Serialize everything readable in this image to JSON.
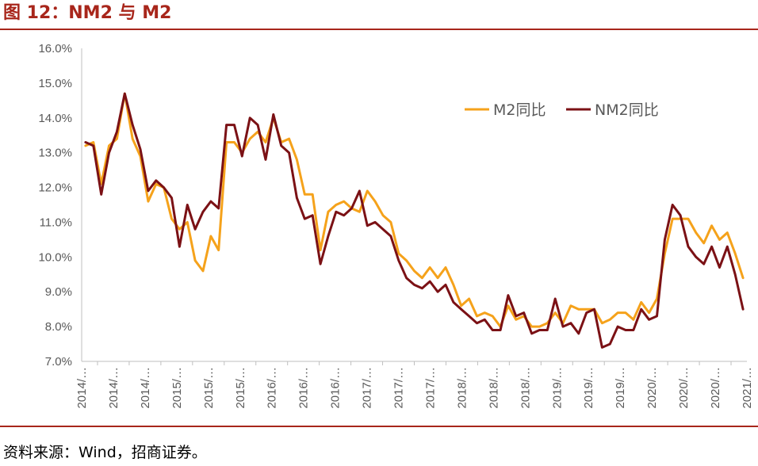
{
  "figure": {
    "title": "图 12：NM2 与 M2",
    "source": "资料来源：Wind，招商证券。"
  },
  "colors": {
    "m2": "#f5a21b",
    "nm2": "#7b1115",
    "accent": "#a8261b",
    "axis": "#bfbfbf",
    "tick_text": "#595959"
  },
  "chart_data": {
    "type": "line",
    "title": "",
    "xlabel": "",
    "ylabel": "",
    "ylim": [
      7.0,
      16.0
    ],
    "y_ticks": [
      "7.0%",
      "8.0%",
      "9.0%",
      "10.0%",
      "11.0%",
      "12.0%",
      "13.0%",
      "14.0%",
      "15.0%",
      "16.0%"
    ],
    "x_tick_labels": [
      "2014/…",
      "2014/…",
      "2014/…",
      "2015/…",
      "2015/…",
      "2015/…",
      "2016/…",
      "2016/…",
      "2016/…",
      "2017/…",
      "2017/…",
      "2017/…",
      "2018/…",
      "2018/…",
      "2018/…",
      "2019/…",
      "2019/…",
      "2019/…",
      "2020/…",
      "2020/…",
      "2020/…",
      "2021/…"
    ],
    "grid": false,
    "legend_position": "top-right",
    "series": [
      {
        "name": "M2同比",
        "values": [
          13.2,
          13.3,
          12.1,
          13.2,
          13.4,
          14.7,
          13.4,
          12.9,
          11.6,
          12.1,
          12.0,
          11.1,
          10.8,
          11.0,
          9.9,
          9.6,
          10.6,
          10.2,
          13.3,
          13.3,
          13.0,
          13.4,
          13.6,
          13.3,
          14.0,
          13.3,
          13.4,
          12.8,
          11.8,
          11.8,
          10.2,
          11.3,
          11.5,
          11.6,
          11.4,
          11.3,
          11.9,
          11.6,
          11.2,
          11.0,
          10.1,
          9.9,
          9.6,
          9.4,
          9.7,
          9.4,
          9.7,
          9.2,
          8.6,
          8.8,
          8.3,
          8.4,
          8.3,
          8.0,
          8.6,
          8.2,
          8.3,
          8.0,
          8.0,
          8.1,
          8.4,
          8.1,
          8.6,
          8.5,
          8.5,
          8.5,
          8.1,
          8.2,
          8.4,
          8.4,
          8.2,
          8.7,
          8.4,
          8.8,
          10.1,
          11.1,
          11.1,
          11.1,
          10.7,
          10.4,
          10.9,
          10.5,
          10.7,
          10.1,
          9.4
        ]
      },
      {
        "name": "NM2同比",
        "values": [
          13.3,
          13.2,
          11.8,
          13.0,
          13.6,
          14.7,
          13.8,
          13.1,
          11.9,
          12.2,
          12.0,
          11.7,
          10.3,
          11.5,
          10.8,
          11.3,
          11.6,
          11.4,
          13.8,
          13.8,
          12.9,
          14.0,
          13.8,
          12.8,
          14.1,
          13.2,
          13.0,
          11.7,
          11.1,
          11.2,
          9.8,
          10.6,
          11.3,
          11.2,
          11.4,
          11.9,
          10.9,
          11.0,
          10.8,
          10.6,
          9.9,
          9.4,
          9.2,
          9.1,
          9.3,
          9.0,
          9.2,
          8.7,
          8.5,
          8.3,
          8.1,
          8.2,
          7.9,
          7.9,
          8.9,
          8.3,
          8.4,
          7.8,
          7.9,
          7.9,
          8.8,
          8.0,
          8.1,
          7.8,
          8.4,
          8.5,
          7.4,
          7.5,
          8.0,
          7.9,
          7.9,
          8.5,
          8.2,
          8.3,
          10.5,
          11.5,
          11.2,
          10.3,
          10.0,
          9.8,
          10.3,
          9.7,
          10.3,
          9.5,
          8.5
        ]
      }
    ]
  }
}
